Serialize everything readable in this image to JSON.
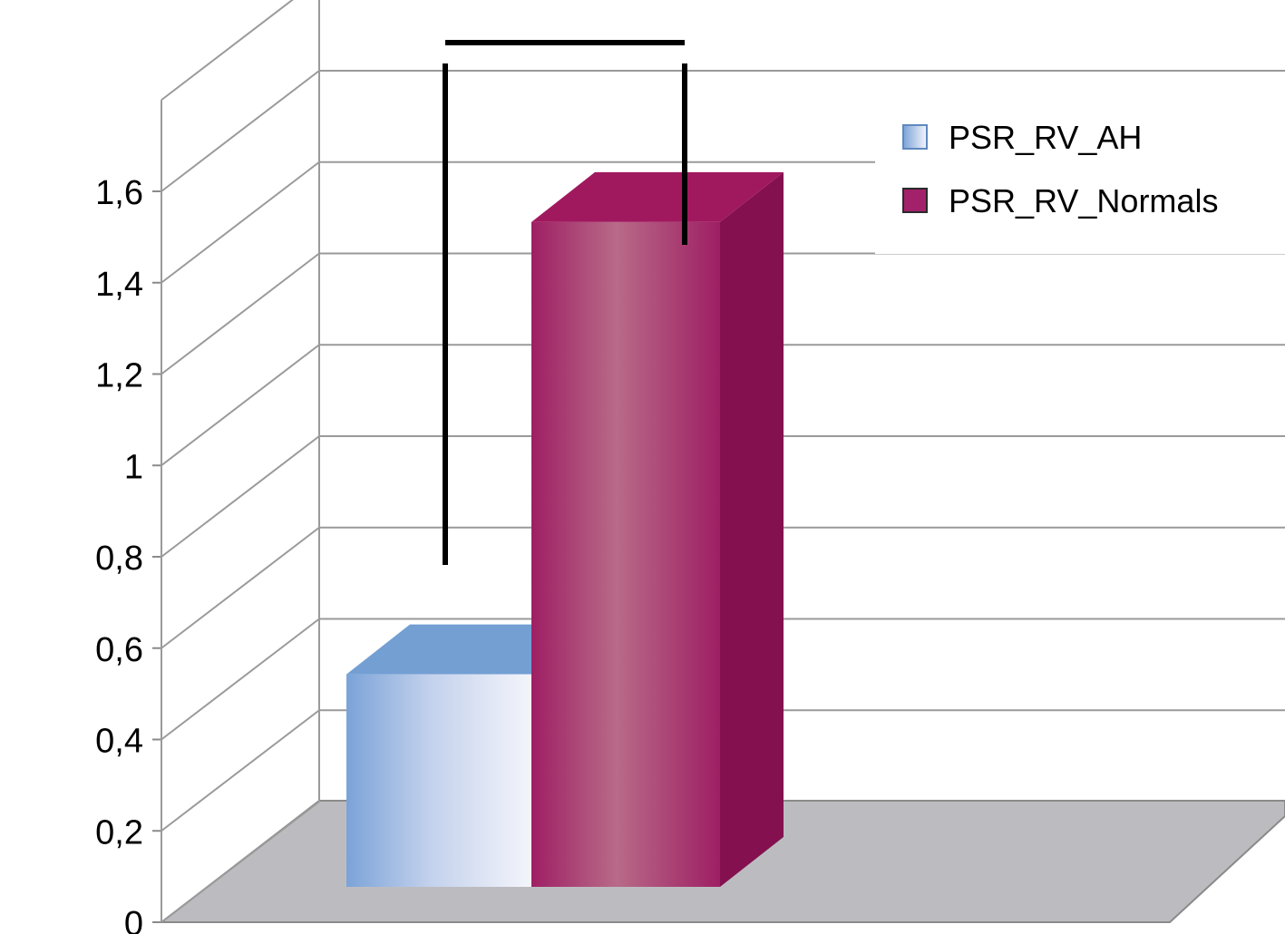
{
  "chart_data": {
    "type": "bar",
    "title": "",
    "xlabel": "",
    "ylabel": "",
    "ylim": [
      0,
      1.6
    ],
    "yticks": [
      "0",
      "0,2",
      "0,4",
      "0,6",
      "0,8",
      "1",
      "1,2",
      "1,4",
      "1,6"
    ],
    "categories": [
      ""
    ],
    "series": [
      {
        "name": "PSR_RV_AH",
        "values": [
          0.47
        ],
        "error_upper": [
          0.8
        ],
        "color": "#7ba3d8"
      },
      {
        "name": "PSR_RV_Normals",
        "values": [
          1.47
        ],
        "error_upper": [
          1.8
        ],
        "color": "#a3216a"
      }
    ],
    "legend_position": "top-right",
    "grid": true,
    "style": "3d-clustered-column"
  }
}
